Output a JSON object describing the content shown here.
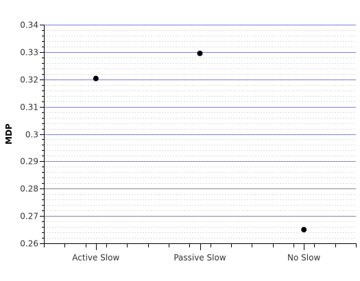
{
  "chart_data": {
    "type": "scatter",
    "title": "",
    "xlabel": "",
    "ylabel": "MDP",
    "categories": [
      "Active Slow",
      "Passive Slow",
      "No Slow"
    ],
    "values": [
      0.3203,
      0.3295,
      0.265
    ],
    "ylim": [
      0.26,
      0.34
    ],
    "y_ticks": [
      "0.34",
      "0.33",
      "0.32",
      "0.31",
      "0.3",
      "0.29",
      "0.28",
      "0.27",
      "0.26"
    ],
    "grid": true,
    "legend": "none",
    "colors": {
      "marker": "#000000",
      "major_grid_upper": "#7d7de0",
      "major_grid_lower": "#8585a8",
      "minor_grid": "#dcdcdc",
      "axis": "#000000"
    }
  }
}
